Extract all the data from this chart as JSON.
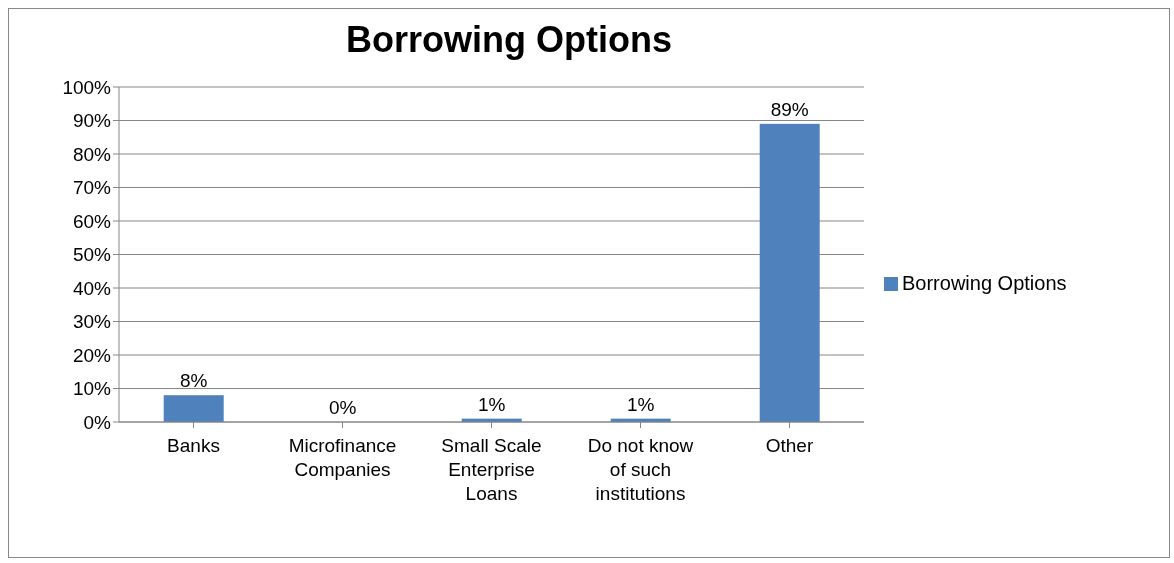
{
  "chart_data": {
    "type": "bar",
    "title": "Borrowing Options",
    "categories": [
      "Banks",
      "Microfinance Companies",
      "Small Scale Enterprise Loans",
      "Do not know of such institutions",
      "Other"
    ],
    "series": [
      {
        "name": "Borrowing Options",
        "color": "#4f81bd",
        "values": [
          8,
          0,
          1,
          1,
          89
        ],
        "value_labels": [
          "8%",
          "0%",
          "1%",
          "1%",
          "89%"
        ]
      }
    ],
    "ylim": [
      0,
      100
    ],
    "yticks": [
      {
        "value": 0,
        "label": "0%"
      },
      {
        "value": 10,
        "label": "10%"
      },
      {
        "value": 20,
        "label": "20%"
      },
      {
        "value": 30,
        "label": "30%"
      },
      {
        "value": 40,
        "label": "40%"
      },
      {
        "value": 50,
        "label": "50%"
      },
      {
        "value": 60,
        "label": "60%"
      },
      {
        "value": 70,
        "label": "70%"
      },
      {
        "value": 80,
        "label": "80%"
      },
      {
        "value": 90,
        "label": "90%"
      },
      {
        "value": 100,
        "label": "100%"
      }
    ],
    "grid": "y",
    "legend": "right"
  }
}
